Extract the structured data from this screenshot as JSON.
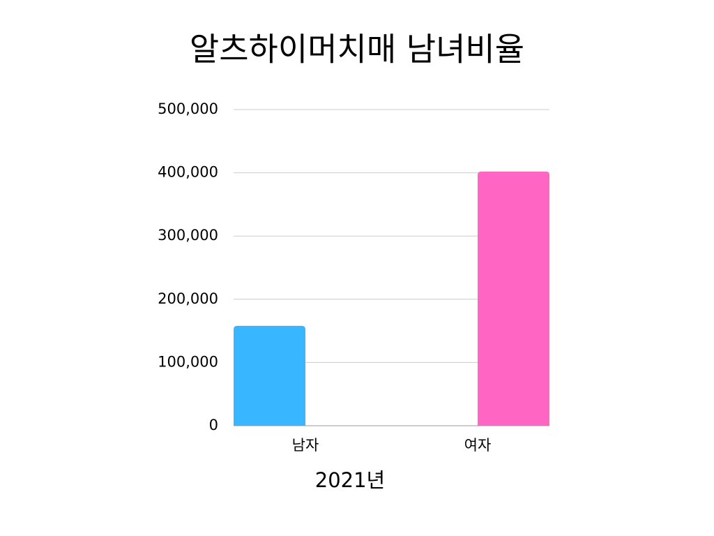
{
  "chart_data": {
    "type": "bar",
    "title": "알츠하이머치매 남녀비율",
    "x_label": "2021년",
    "categories": [
      "남자",
      "여자"
    ],
    "values": [
      158000,
      402000
    ],
    "colors": [
      "#38b6ff",
      "#ff66c4"
    ],
    "ylim": [
      0,
      500000
    ],
    "yticks": [
      0,
      {
        "value": 100000,
        "label": "100,000"
      },
      {
        "value": 200000,
        "label": "200,000"
      },
      {
        "value": 300000,
        "label": "300,000"
      },
      {
        "value": 400000,
        "label": "400,000"
      },
      {
        "value": 500000,
        "label": "500,000"
      }
    ],
    "grid": true
  }
}
